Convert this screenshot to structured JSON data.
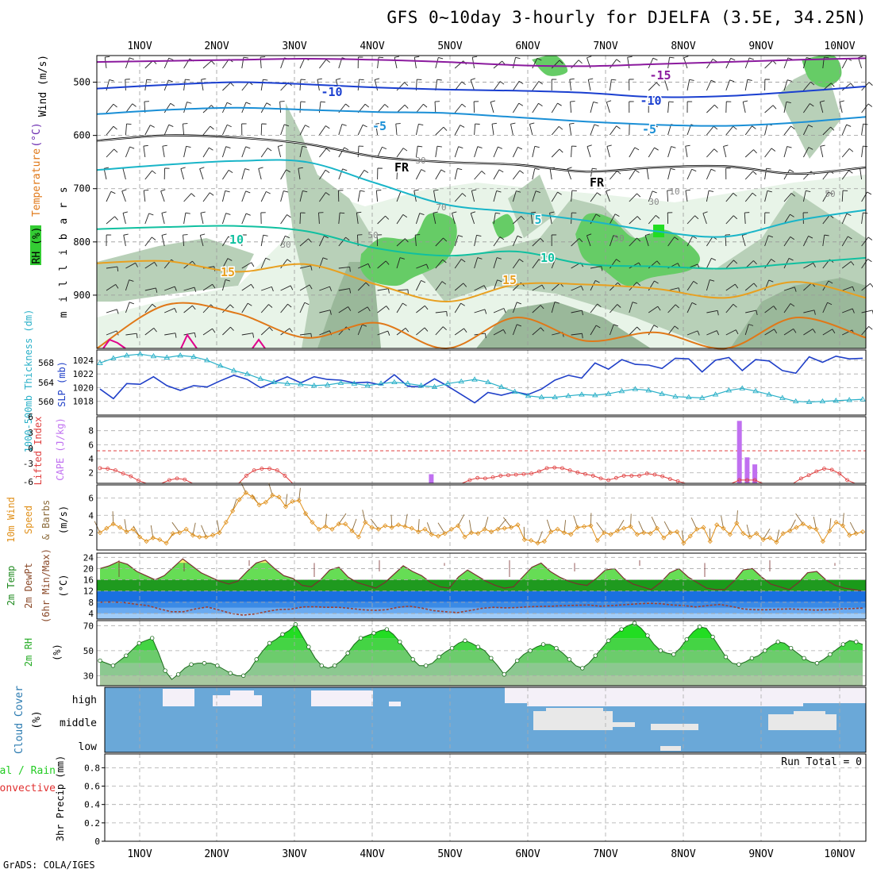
{
  "title": "GFS 0~10day 3-hourly for DJELFA (3.5E, 34.25N)",
  "footer": "GrADS: COLA/IGES",
  "colors": {
    "temp_lines": [
      "#8b1a9e",
      "#1a3fd0",
      "#1a8fd6",
      "#000000",
      "#19b5c8",
      "#10c0a0",
      "#e8a020",
      "#e07818",
      "#e0008c"
    ],
    "rh_fill": [
      "#e8f4e8",
      "#b8d0b8",
      "#9ab89a",
      "#66cc66",
      "#22dd22"
    ],
    "thickness": "#2ab0c8",
    "slp": "#1f3fc8",
    "lifted_index": "#e04040",
    "cape": "#c070f0",
    "wind_speed": "#e0901a",
    "barbs": "#8b6a3a",
    "temp_fill": "#1f9a1f",
    "temp_warm": "#f0f070",
    "dewpoint_fill": [
      "#1a70e0",
      "#3a8ae6",
      "#6aaaf0",
      "#a0ccf8"
    ],
    "rh2m_fill": "#22dd22",
    "cloud_bg": "#6aa8d8",
    "cloud_high": "#f4f0f8",
    "cloud_mid": "#e8e8e8"
  },
  "chart_data": [
    {
      "panel": "upper-air",
      "type": "heatmap",
      "title": "GFS 0~10day 3-hourly for DJELFA (3.5E, 34.25N)",
      "ylabel": "m i l l i b a r s",
      "side_labels": {
        "wind": "Wind (m/s)",
        "temp_paren": "(°C)",
        "temp": "Temperature",
        "rh": "RH (%)"
      },
      "x_days": [
        "1NOV",
        "2NOV",
        "3NOV",
        "4NOV",
        "5NOV",
        "6NOV",
        "7NOV",
        "8NOV",
        "9NOV",
        "10NOV"
      ],
      "yticks": [
        500,
        600,
        700,
        800,
        900
      ],
      "ylim": [
        1000,
        450
      ],
      "isotherm_labels": [
        "-15",
        "-10",
        "-10",
        "-5",
        "-5",
        "FR",
        "FR",
        "5",
        "10",
        "10",
        "15",
        "15"
      ],
      "rh_labels": [
        "30",
        "50",
        "70",
        "30",
        "50",
        "10",
        "30",
        "50"
      ],
      "isotherms": [
        {
          "name": "-15",
          "p": [
            462,
            460,
            458,
            456,
            458,
            462,
            468,
            470,
            466,
            462,
            458,
            455
          ]
        },
        {
          "name": "-10",
          "p": [
            512,
            505,
            500,
            504,
            510,
            514,
            516,
            520,
            528,
            526,
            518,
            508
          ]
        },
        {
          "name": "-5",
          "p": [
            560,
            552,
            548,
            552,
            556,
            558,
            566,
            574,
            580,
            582,
            576,
            565
          ]
        },
        {
          "name": "FR",
          "p": [
            610,
            600,
            604,
            616,
            640,
            650,
            655,
            668,
            660,
            658,
            672,
            660
          ]
        },
        {
          "name": "5",
          "p": [
            665,
            655,
            648,
            650,
            690,
            730,
            744,
            760,
            780,
            790,
            760,
            740
          ]
        },
        {
          "name": "10",
          "p": [
            776,
            772,
            770,
            780,
            812,
            826,
            818,
            842,
            846,
            850,
            840,
            830
          ]
        },
        {
          "name": "15",
          "p": [
            840,
            836,
            856,
            842,
            880,
            912,
            880,
            880,
            888,
            905,
            875,
            905
          ]
        },
        {
          "name": "20",
          "p": [
            1000,
            918,
            934,
            980,
            952,
            1000,
            942,
            986,
            970,
            1000,
            942,
            980
          ]
        }
      ]
    },
    {
      "panel": "thickness-slp",
      "type": "line",
      "y_left_label": "1000-500mb Thickness (dm)",
      "y_right_label": "SLP (mb)",
      "yticks_left": [
        560,
        564,
        568
      ],
      "yticks_right": [
        1018,
        1020,
        1022,
        1024
      ],
      "ylim_right": [
        1016,
        1025.5
      ],
      "series": [
        {
          "name": "SLP",
          "values": [
            1019.8,
            1018.4,
            1020.6,
            1020.5,
            1021.6,
            1020.3,
            1019.6,
            1020.3,
            1020.1,
            1021.0,
            1021.8,
            1021.2,
            1020.0,
            1020.8,
            1021.6,
            1020.7,
            1021.6,
            1021.2,
            1021.1,
            1020.7,
            1020.8,
            1020.4,
            1021.9,
            1020.2,
            1020.1,
            1021.3,
            1020.2,
            1019.0,
            1017.8,
            1019.3,
            1018.9,
            1019.4,
            1019.0,
            1019.8,
            1021.1,
            1021.8,
            1021.4,
            1023.6,
            1022.7,
            1024.1,
            1023.4,
            1023.3,
            1022.8,
            1024.3,
            1024.2,
            1022.3,
            1024.0,
            1024.4,
            1022.5,
            1024.1,
            1023.9,
            1022.5,
            1022.1,
            1024.5,
            1023.7,
            1024.6,
            1024.2,
            1024.3
          ]
        },
        {
          "name": "Thickness",
          "values": [
            1023.6,
            1024.3,
            1024.7,
            1024.9,
            1024.6,
            1024.4,
            1024.7,
            1024.5,
            1024.0,
            1023.2,
            1022.5,
            1022.0,
            1021.3,
            1020.8,
            1020.6,
            1020.5,
            1020.3,
            1020.4,
            1020.7,
            1020.6,
            1020.3,
            1020.6,
            1020.8,
            1020.6,
            1020.3,
            1020.1,
            1020.6,
            1020.9,
            1021.2,
            1020.8,
            1020.1,
            1019.4,
            1018.8,
            1018.6,
            1018.6,
            1018.8,
            1019.0,
            1018.9,
            1019.1,
            1019.5,
            1019.8,
            1019.6,
            1019.1,
            1018.7,
            1018.6,
            1018.5,
            1019.0,
            1019.6,
            1019.9,
            1019.5,
            1019.0,
            1018.5,
            1018.0,
            1017.9,
            1018.0,
            1018.1,
            1018.2,
            1018.3
          ]
        }
      ]
    },
    {
      "panel": "stability",
      "type": "bar",
      "y_left_label": "Lifted Index",
      "y_right_label": "CAPE (J/kg)",
      "yticks_left": [
        "-6",
        "-3",
        "0",
        "3",
        "6"
      ],
      "yticks_right": [
        "2",
        "4",
        "6",
        "8"
      ],
      "ylim_right": [
        0.5,
        10
      ],
      "series": [
        {
          "name": "Lifted Index",
          "values": [
            3.2,
            3.3,
            3.6,
            4.2,
            4.7,
            5.5,
            6.0,
            6.0,
            6.0,
            5.4,
            5.1,
            5.3,
            6.0,
            6.0,
            6.0,
            6.0,
            6.0,
            6.0,
            6.0,
            4.6,
            3.6,
            3.3,
            3.3,
            3.6,
            4.6,
            6.0,
            6.0,
            6.0,
            6.0,
            6.0,
            6.0,
            6.0,
            6.0,
            6.0,
            6.0,
            6.0,
            6.0,
            6.0,
            6.0,
            6.0,
            6.0,
            6.0,
            6.0,
            6.0,
            6.0,
            6.0,
            6.0,
            6.0,
            5.4,
            5.0,
            5.1,
            4.9,
            4.6,
            4.5,
            4.4,
            4.3,
            4.2,
            3.8,
            3.2,
            3.1,
            3.2,
            3.6,
            4.0,
            4.3,
            4.6,
            5.1,
            5.4,
            5.0,
            4.6,
            4.6,
            4.6,
            4.2,
            4.4,
            4.7,
            5.2,
            5.6,
            6.0,
            6.0,
            6.0,
            6.0,
            6.0,
            6.0,
            6.0,
            5.4,
            5.4,
            5.4,
            6.0,
            6.0,
            6.0,
            6.0,
            6.0,
            5.1,
            4.5,
            3.8,
            3.3,
            3.5,
            4.2,
            5.4,
            6.0,
            6.0
          ]
        },
        {
          "name": "CAPE",
          "values": [
            0.5,
            0.5,
            0.5,
            0.5,
            0.5,
            0.5,
            0.5,
            0.5,
            0.5,
            0.5,
            0.5,
            0.5,
            0.5,
            0.5,
            0.5,
            0.5,
            0.5,
            0.5,
            0.5,
            0.5,
            0.5,
            0.5,
            0.5,
            0.5,
            0.5,
            0.5,
            0.5,
            0.5,
            0.5,
            0.5,
            0.5,
            0.5,
            0.5,
            0.5,
            0.5,
            0.5,
            0.5,
            0.5,
            0.5,
            0.5,
            0.5,
            0.5,
            0.5,
            1.8,
            0.5,
            0.5,
            0.5,
            0.5,
            0.5,
            0.5,
            0.5,
            0.5,
            0.5,
            0.5,
            0.5,
            0.5,
            0.5,
            0.5,
            0.5,
            0.5,
            0.5,
            0.5,
            0.5,
            0.5,
            0.5,
            0.5,
            0.5,
            0.5,
            0.5,
            0.5,
            0.5,
            0.5,
            0.5,
            0.5,
            0.5,
            0.5,
            0.5,
            0.5,
            0.5,
            0.5,
            0.5,
            0.5,
            0.5,
            9.4,
            4.2,
            3.2,
            0.5,
            0.5,
            0.5,
            0.5,
            0.5,
            0.5,
            0.5,
            0.5,
            0.5,
            0.5,
            0.5,
            0.5,
            0.5,
            0.5
          ]
        }
      ]
    },
    {
      "panel": "wind10m",
      "type": "line",
      "y_left_label": "10m Wind Speed & Barbs",
      "y_unit": "(m/s)",
      "yticks": [
        "2",
        "4",
        "6"
      ],
      "ylim": [
        0,
        7.5
      ],
      "series": [
        {
          "name": "10m Wind Speed",
          "values": [
            2.0,
            2.5,
            3.0,
            2.6,
            2.1,
            2.4,
            1.5,
            1.0,
            1.4,
            1.2,
            0.8,
            1.9,
            2.0,
            2.4,
            1.7,
            1.5,
            1.5,
            1.7,
            2.0,
            3.2,
            4.5,
            5.8,
            6.6,
            6.1,
            5.2,
            5.5,
            6.3,
            6.1,
            5.0,
            5.6,
            5.7,
            4.2,
            3.2,
            2.4,
            2.7,
            2.4,
            3.0,
            3.0,
            2.2,
            1.5,
            3.2,
            2.6,
            2.4,
            2.8,
            2.6,
            2.9,
            2.7,
            2.5,
            2.1,
            2.4,
            1.8,
            1.6,
            1.9,
            2.4,
            2.8,
            1.5,
            2.0,
            1.9,
            2.4,
            2.1,
            2.4,
            2.5,
            2.6,
            2.9,
            1.2,
            1.1,
            0.8,
            1.0,
            2.1,
            2.4,
            2.0,
            1.8,
            2.6,
            2.7,
            2.8,
            1.1,
            2.0,
            1.8,
            2.2,
            2.5,
            2.7,
            1.8,
            2.0,
            1.9,
            2.5,
            1.4,
            2.0,
            2.1,
            0.8,
            1.6,
            2.4,
            2.6,
            1.0,
            2.9,
            2.5,
            1.8,
            3.1,
            1.9,
            1.5,
            1.9,
            1.2,
            1.4,
            0.9,
            1.9,
            2.2,
            2.6,
            3.0,
            2.6,
            2.4,
            1.0,
            2.2,
            3.2,
            2.8,
            1.7,
            1.9,
            2.1
          ]
        }
      ]
    },
    {
      "panel": "temp2m",
      "type": "area",
      "y_left_label": "2m Temp 2m DewPt (6hr Min/Max)",
      "y_unit": "(°C)",
      "yticks": [
        "4",
        "8",
        "12",
        "16",
        "20",
        "24"
      ],
      "ylim": [
        2,
        25.5
      ],
      "series": [
        {
          "name": "2m Temp",
          "values": [
            20.0,
            21.0,
            22.5,
            21.5,
            19.0,
            17.5,
            16.0,
            17.5,
            20.5,
            23.5,
            21.0,
            18.5,
            17.0,
            15.5,
            14.5,
            15.5,
            19.0,
            22.0,
            23.0,
            20.0,
            17.5,
            16.5,
            14.0,
            13.5,
            16.0,
            19.5,
            20.5,
            17.0,
            15.0,
            14.0,
            13.0,
            15.0,
            18.0,
            21.0,
            19.0,
            17.5,
            15.0,
            13.5,
            13.0,
            17.0,
            19.5,
            17.5,
            15.5,
            14.0,
            13.0,
            13.5,
            17.0,
            20.5,
            22.0,
            19.0,
            17.0,
            15.5,
            14.5,
            14.0,
            16.5,
            19.5,
            20.0,
            16.5,
            14.5,
            13.5,
            12.5,
            15.0,
            18.5,
            20.0,
            17.0,
            15.0,
            13.0,
            12.5,
            12.5,
            15.5,
            19.5,
            20.0,
            17.0,
            14.5,
            13.5,
            12.5,
            15.0,
            18.5,
            19.0,
            16.0,
            14.0,
            13.0,
            12.5,
            12.0
          ]
        },
        {
          "name": "2m DewPt",
          "values": [
            8.0,
            8.1,
            7.9,
            7.3,
            6.8,
            5.6,
            4.6,
            4.6,
            5.6,
            6.3,
            5.2,
            4.0,
            3.4,
            3.8,
            4.7,
            5.4,
            5.5,
            6.3,
            6.4,
            6.2,
            6.2,
            5.8,
            5.3,
            5.1,
            5.3,
            6.2,
            6.6,
            5.9,
            5.0,
            4.6,
            4.3,
            5.0,
            5.8,
            6.2,
            6.0,
            6.1,
            6.4,
            6.5,
            6.6,
            6.8,
            6.9,
            7.0,
            6.6,
            6.8,
            7.1,
            7.4,
            7.6,
            7.5,
            7.0,
            6.8,
            6.3,
            6.8,
            7.2,
            6.5,
            5.6,
            5.3,
            5.3,
            5.5,
            5.6,
            5.4,
            5.2,
            5.3,
            5.6,
            5.7,
            5.9
          ]
        }
      ]
    },
    {
      "panel": "rh2m",
      "type": "area",
      "y_left_label": "2m RH",
      "y_unit": "(%)",
      "yticks": [
        "30",
        "50",
        "70"
      ],
      "ylim": [
        22,
        74
      ],
      "series": [
        {
          "name": "2m RH",
          "values": [
            42,
            40,
            38,
            42,
            46,
            51,
            56,
            58,
            60,
            48,
            34,
            27,
            31,
            36,
            39,
            40,
            40,
            40,
            38,
            35,
            32,
            30,
            30,
            35,
            43,
            50,
            56,
            59,
            63,
            66,
            71,
            62,
            53,
            44,
            38,
            36,
            38,
            42,
            48,
            55,
            60,
            62,
            64,
            66,
            67,
            63,
            57,
            50,
            43,
            38,
            38,
            40,
            45,
            49,
            52,
            56,
            58,
            56,
            53,
            50,
            44,
            38,
            31,
            36,
            42,
            47,
            50,
            53,
            55,
            55,
            52,
            48,
            43,
            38,
            36,
            40,
            46,
            52,
            58,
            63,
            67,
            70,
            72,
            68,
            62,
            55,
            50,
            48,
            47,
            52,
            59,
            65,
            69,
            68,
            61,
            53,
            45,
            40,
            39,
            41,
            44,
            46,
            50,
            54,
            57,
            56,
            52,
            48,
            44,
            41,
            40,
            43,
            47,
            51,
            55,
            58,
            57,
            55
          ]
        }
      ]
    },
    {
      "panel": "cloud",
      "type": "heatmap",
      "y_left_label": "Cloud Cover",
      "y_unit": "(%)",
      "levels": [
        "high",
        "middle",
        "low"
      ]
    },
    {
      "panel": "precip",
      "type": "bar",
      "y_left_label": "3hr Precip (mm)",
      "y_left_extra": [
        "tal / Rain",
        "Convective"
      ],
      "yticks": [
        "0",
        "0.2",
        "0.4",
        "0.6",
        "0.8"
      ],
      "ylim": [
        0,
        0.95
      ],
      "annotation": "Run Total = 0",
      "series": [
        {
          "name": "3hr Precip",
          "values": []
        }
      ]
    }
  ]
}
